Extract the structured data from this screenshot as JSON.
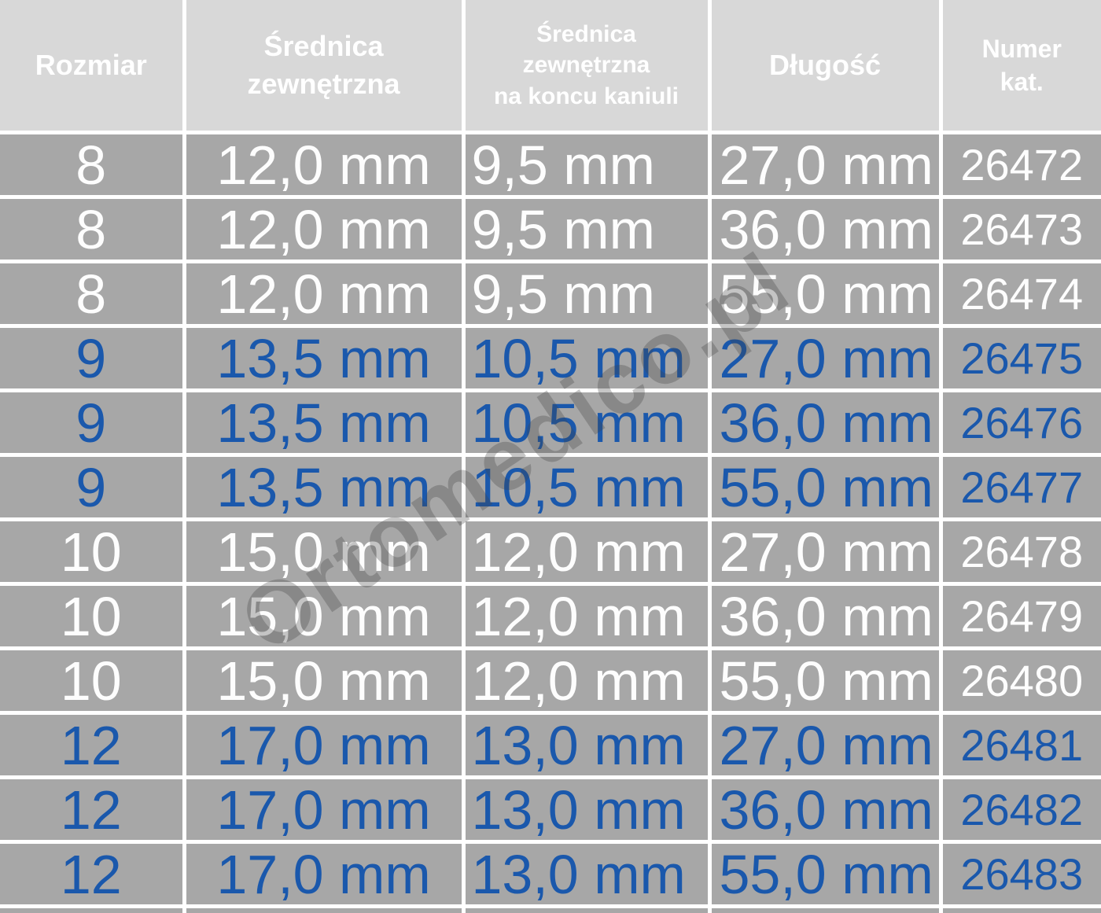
{
  "colors": {
    "header_bg": "#d8d8d8",
    "cell_bg": "#a7a7a7",
    "separator": "#ffffff",
    "text_white": "#fdfdfd",
    "text_blue": "#1a58ac",
    "watermark": "#444444"
  },
  "header": {
    "columns": [
      {
        "id": "rozmiar",
        "label": "Rozmiar"
      },
      {
        "id": "srednica",
        "label": "Średnica\nzewnętrzna"
      },
      {
        "id": "srednica_koncu",
        "label": "Średnica\nzewnętrzna\nna koncu kaniuli"
      },
      {
        "id": "dlugosc",
        "label": "Długość"
      },
      {
        "id": "numer",
        "label": "Numer\nkat."
      }
    ]
  },
  "rows": [
    {
      "rozmiar": "8",
      "srednica": "12,0 mm",
      "srednica_koncu": "9,5 mm",
      "dlugosc": "27,0 mm",
      "numer": "26472",
      "text_color": "white"
    },
    {
      "rozmiar": "8",
      "srednica": "12,0 mm",
      "srednica_koncu": "9,5 mm",
      "dlugosc": "36,0 mm",
      "numer": "26473",
      "text_color": "white"
    },
    {
      "rozmiar": "8",
      "srednica": "12,0 mm",
      "srednica_koncu": "9,5 mm",
      "dlugosc": "55,0 mm",
      "numer": "26474",
      "text_color": "white"
    },
    {
      "rozmiar": "9",
      "srednica": "13,5 mm",
      "srednica_koncu": "10,5 mm",
      "dlugosc": "27,0 mm",
      "numer": "26475",
      "text_color": "blue"
    },
    {
      "rozmiar": "9",
      "srednica": "13,5 mm",
      "srednica_koncu": "10,5 mm",
      "dlugosc": "36,0 mm",
      "numer": "26476",
      "text_color": "blue"
    },
    {
      "rozmiar": "9",
      "srednica": "13,5 mm",
      "srednica_koncu": "10,5 mm",
      "dlugosc": "55,0 mm",
      "numer": "26477",
      "text_color": "blue"
    },
    {
      "rozmiar": "10",
      "srednica": "15,0 mm",
      "srednica_koncu": "12,0 mm",
      "dlugosc": "27,0 mm",
      "numer": "26478",
      "text_color": "white"
    },
    {
      "rozmiar": "10",
      "srednica": "15,0 mm",
      "srednica_koncu": "12,0 mm",
      "dlugosc": "36,0 mm",
      "numer": "26479",
      "text_color": "white"
    },
    {
      "rozmiar": "10",
      "srednica": "15,0 mm",
      "srednica_koncu": "12,0 mm",
      "dlugosc": "55,0 mm",
      "numer": "26480",
      "text_color": "white"
    },
    {
      "rozmiar": "12",
      "srednica": "17,0 mm",
      "srednica_koncu": "13,0 mm",
      "dlugosc": "27,0 mm",
      "numer": "26481",
      "text_color": "blue"
    },
    {
      "rozmiar": "12",
      "srednica": "17,0 mm",
      "srednica_koncu": "13,0 mm",
      "dlugosc": "36,0 mm",
      "numer": "26482",
      "text_color": "blue"
    },
    {
      "rozmiar": "12",
      "srednica": "17,0 mm",
      "srednica_koncu": "13,0 mm",
      "dlugosc": "55,0 mm",
      "numer": "26483",
      "text_color": "blue"
    }
  ],
  "watermark": {
    "text": "Ortomedico.pl"
  }
}
